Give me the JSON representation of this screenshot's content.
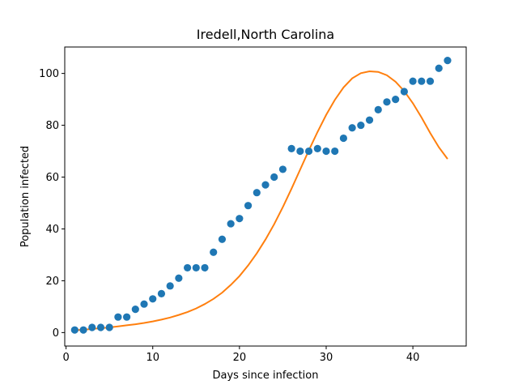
{
  "chart_data": {
    "type": "scatter",
    "title": "Iredell,North Carolina",
    "xlabel": "Days since infection",
    "ylabel": "Population infected",
    "xlim": [
      -0.15,
      46.15
    ],
    "ylim": [
      -5.2,
      110.2
    ],
    "xticks": [
      0,
      10,
      20,
      30,
      40
    ],
    "yticks": [
      0,
      20,
      40,
      60,
      80,
      100
    ],
    "grid": false,
    "series": [
      {
        "kind": "scatter",
        "color": "#1f77b4",
        "x": [
          1,
          2,
          3,
          4,
          5,
          6,
          7,
          8,
          9,
          10,
          11,
          12,
          13,
          14,
          15,
          16,
          17,
          18,
          19,
          20,
          21,
          22,
          23,
          24,
          25,
          26,
          27,
          28,
          29,
          30,
          31,
          32,
          33,
          34,
          35,
          36,
          37,
          38,
          39,
          40,
          41,
          42,
          43,
          44
        ],
        "y": [
          1,
          1,
          2,
          2,
          2,
          6,
          6,
          9,
          11,
          13,
          15,
          18,
          21,
          25,
          25,
          25,
          31,
          36,
          42,
          44,
          49,
          54,
          57,
          60,
          63,
          71,
          70,
          70,
          71,
          70,
          70,
          75,
          79,
          80,
          82,
          86,
          89,
          90,
          93,
          97,
          97,
          97,
          102,
          105
        ]
      },
      {
        "kind": "line",
        "color": "#ff7f0e",
        "x": [
          1,
          2,
          3,
          4,
          5,
          6,
          7,
          8,
          9,
          10,
          11,
          12,
          13,
          14,
          15,
          16,
          17,
          18,
          19,
          20,
          21,
          22,
          23,
          24,
          25,
          26,
          27,
          28,
          29,
          30,
          31,
          32,
          33,
          34,
          35,
          36,
          37,
          38,
          39,
          40,
          41,
          42,
          43,
          44
        ],
        "y": [
          0.9,
          1.1,
          1.4,
          1.7,
          2.0,
          2.4,
          2.8,
          3.2,
          3.7,
          4.3,
          5.0,
          5.8,
          6.8,
          7.9,
          9.3,
          11.0,
          13.0,
          15.4,
          18.4,
          21.8,
          25.9,
          30.6,
          35.9,
          41.8,
          48.4,
          55.5,
          62.9,
          70.3,
          77.4,
          84.0,
          89.8,
          94.6,
          98.1,
          100.1,
          100.8,
          100.6,
          99.3,
          96.8,
          93.2,
          88.5,
          83.0,
          77.0,
          71.5,
          67.0
        ]
      }
    ]
  }
}
